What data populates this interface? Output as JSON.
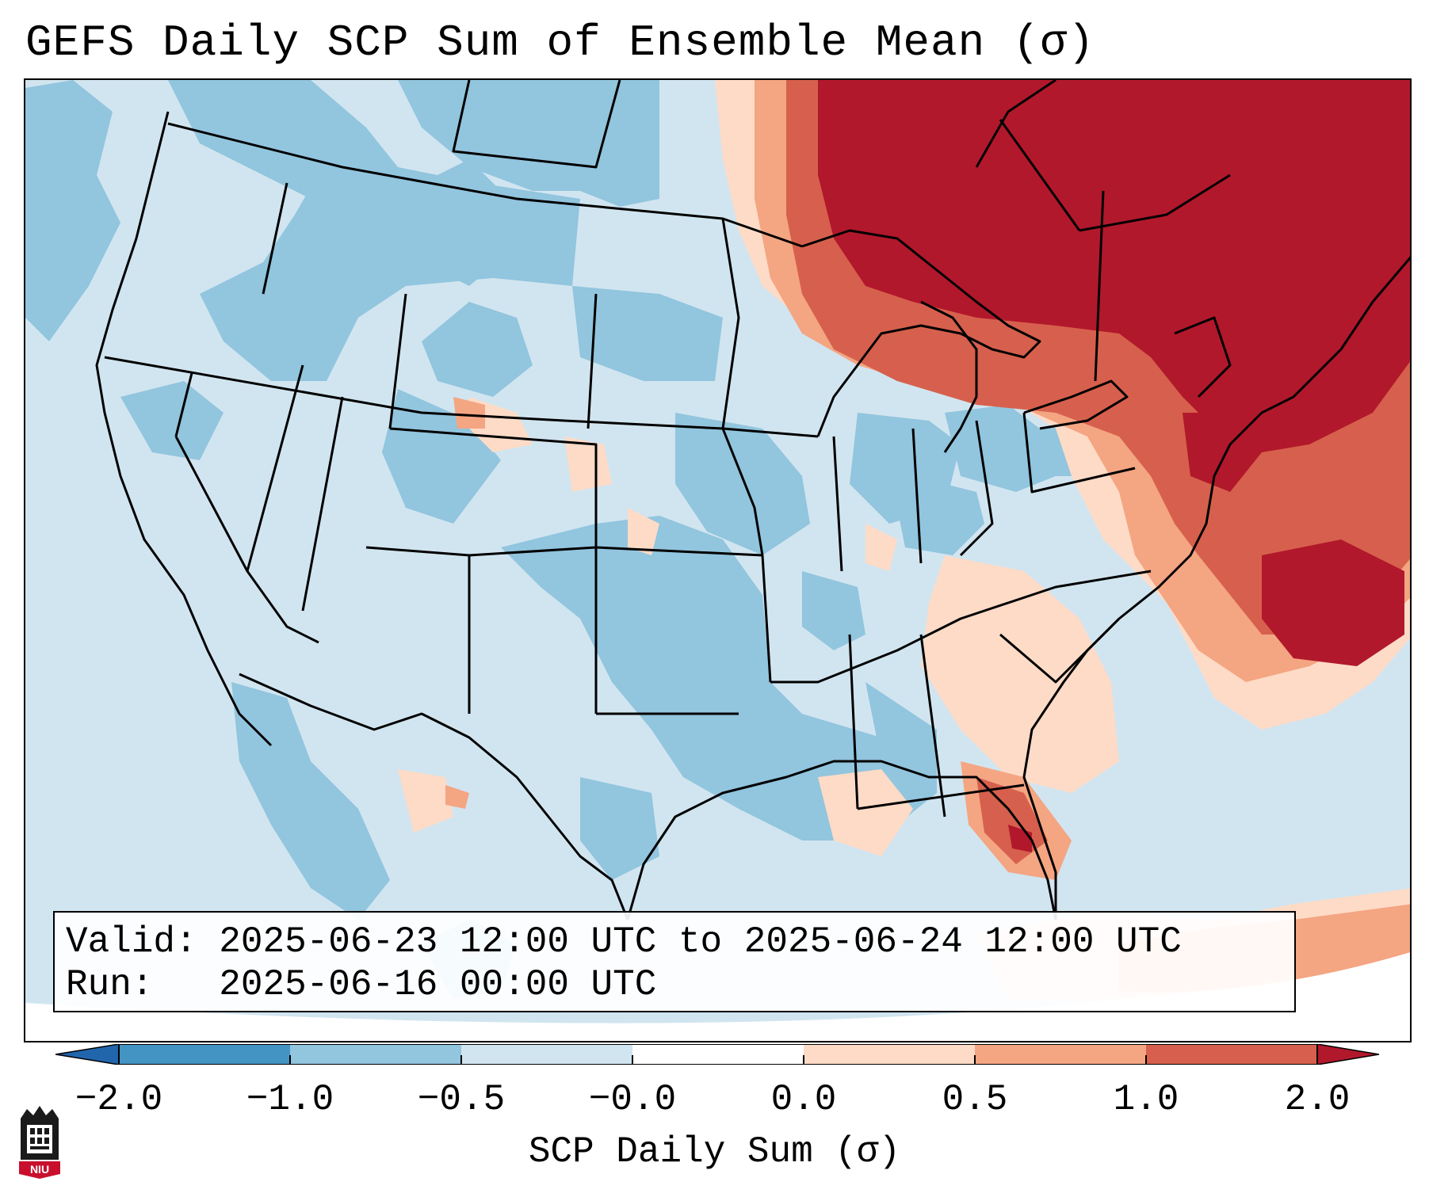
{
  "title": "GEFS Daily SCP Sum of Ensemble Mean (σ)",
  "info": {
    "valid_label": "Valid:",
    "valid_value": "2025-06-23 12:00 UTC to 2025-06-24 12:00 UTC",
    "run_label": "Run:",
    "run_value": "2025-06-16 00:00 UTC"
  },
  "colorbar": {
    "label": "SCP Daily Sum (σ)",
    "ticks": [
      "−2.0",
      "−1.0",
      "−0.5",
      "−0.0",
      "0.0",
      "0.5",
      "1.0",
      "2.0"
    ],
    "colors": [
      "#4393c3",
      "#92c5de",
      "#d1e5f0",
      "#fddbc7",
      "#f4a582",
      "#d6604d",
      "#b2182b"
    ],
    "under_color": "#2166ac",
    "over_color": "#b2182b"
  },
  "legend_colors": {
    "neutral_blue": "#d1e5f0",
    "light_blue": "#92c5de",
    "light_red": "#fddbc7",
    "mid_red": "#f4a582",
    "red": "#d6604d",
    "dark_red": "#b2182b"
  },
  "logo": {
    "text": "NIU",
    "icon": "niu-logo-icon"
  }
}
